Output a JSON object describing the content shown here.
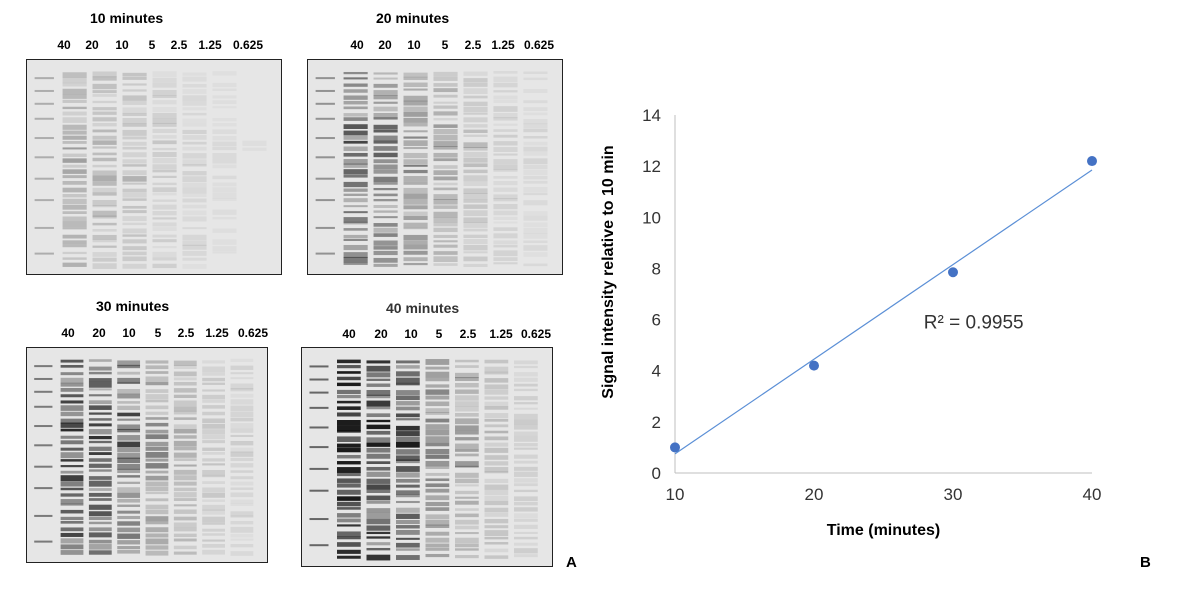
{
  "figure": {
    "panel_a_letter": "A",
    "panel_b_letter": "B"
  },
  "gels": [
    {
      "title": "10 minutes",
      "intensity": 0.25,
      "lanes": [
        "40",
        "20",
        "10",
        "5",
        "2.5",
        "1.25",
        "0.625"
      ]
    },
    {
      "title": "20 minutes",
      "intensity": 0.55,
      "lanes": [
        "40",
        "20",
        "10",
        "5",
        "2.5",
        "1.25",
        "0.625"
      ]
    },
    {
      "title": "30 minutes",
      "intensity": 0.8,
      "lanes": [
        "40",
        "20",
        "10",
        "5",
        "2.5",
        "1.25",
        "0.625"
      ]
    },
    {
      "title": "40 minutes",
      "intensity": 1.0,
      "lanes": [
        "40",
        "20",
        "10",
        "5",
        "2.5",
        "1.25",
        "0.625"
      ]
    }
  ],
  "colors": {
    "series": "#4472C4",
    "trendline": "#5B8FD6",
    "axis": "#bfbfbf",
    "gel_background": "#e6e6e6",
    "band": "#111111"
  },
  "chart_data": {
    "type": "scatter",
    "xlabel": "Time (minutes)",
    "ylabel": "Signal intensity relative to 10 min",
    "x": [
      10,
      20,
      30,
      40
    ],
    "y": [
      1.0,
      4.2,
      7.85,
      12.2
    ],
    "xlim": [
      10,
      40
    ],
    "ylim": [
      0,
      14
    ],
    "xticks": [
      "10",
      "20",
      "30",
      "40"
    ],
    "yticks": [
      "0",
      "2",
      "4",
      "6",
      "8",
      "10",
      "12",
      "14"
    ],
    "trendline": {
      "type": "linear",
      "x": [
        10,
        40
      ],
      "y": [
        0.75,
        11.85
      ]
    },
    "annotation": "R² = 0.9955",
    "grid": false,
    "legend": "none"
  }
}
